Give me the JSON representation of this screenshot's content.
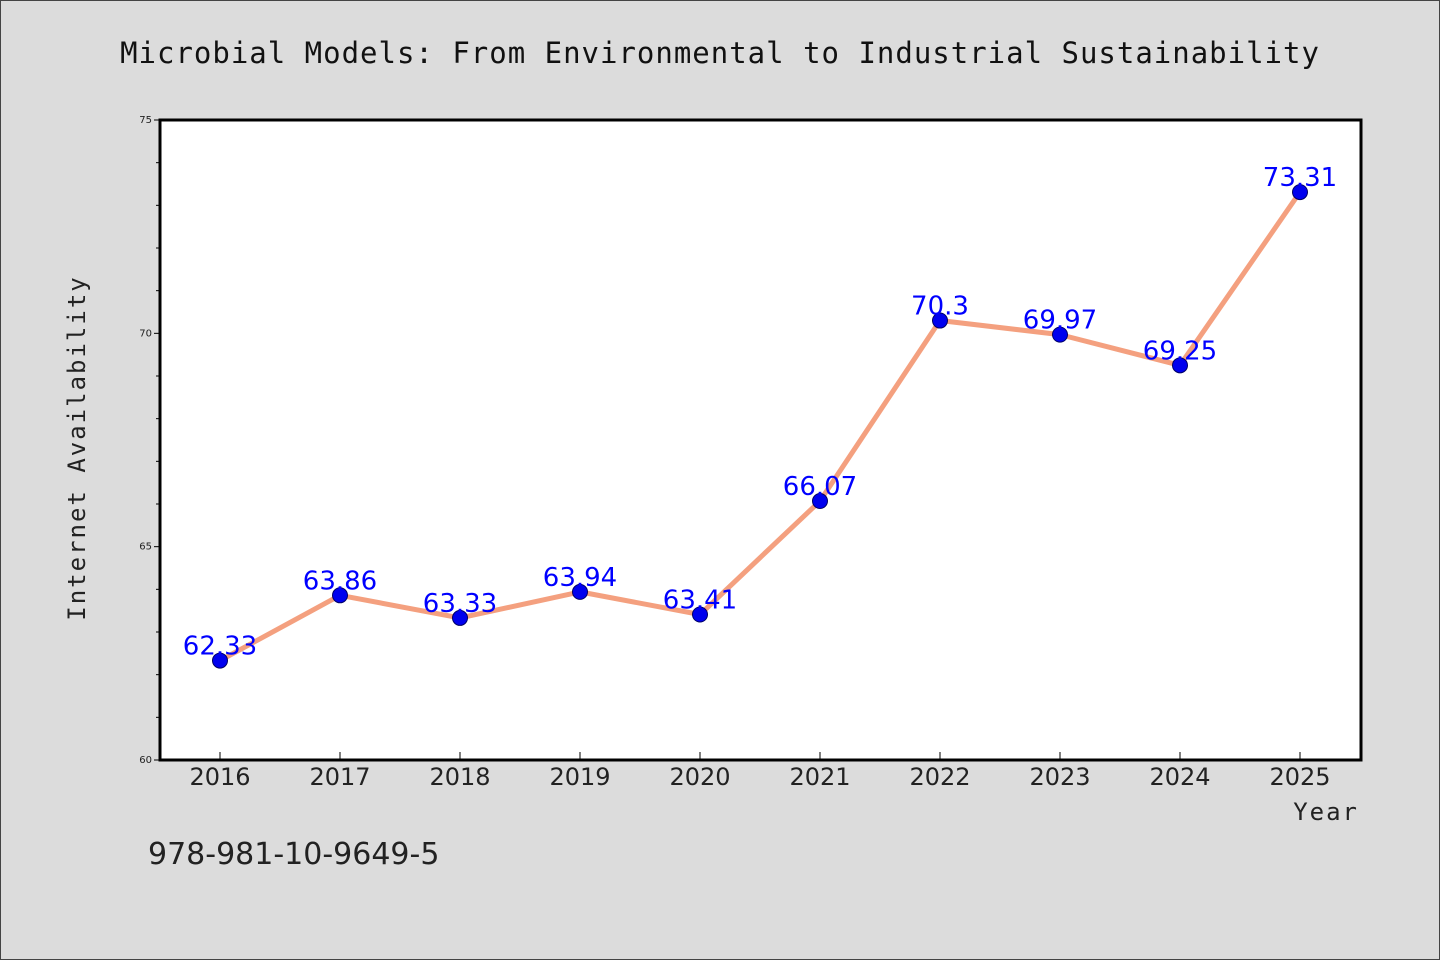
{
  "chart_data": {
    "type": "line",
    "title": "Microbial Models: From Environmental to Industrial Sustainability",
    "xlabel": "Year",
    "ylabel": "Internet Availability",
    "categories": [
      "2016",
      "2017",
      "2018",
      "2019",
      "2020",
      "2021",
      "2022",
      "2023",
      "2024",
      "2025"
    ],
    "series": [
      {
        "values": [
          62.33,
          63.86,
          63.33,
          63.94,
          63.41,
          66.07,
          70.3,
          69.97,
          69.25,
          73.31
        ],
        "labels": [
          "62.33",
          "63.86",
          "63.33",
          "63.94",
          "63.41",
          "66.07",
          "70.3",
          "69.97",
          "69.25",
          "73.31"
        ],
        "line_color": "#f4a07f",
        "marker_color": "#0000ee"
      }
    ],
    "ylim": [
      60,
      75
    ],
    "yticks": [
      "60",
      "65",
      "70",
      "75"
    ],
    "grid": false,
    "legend": "none"
  },
  "footer": {
    "isbn": "978-981-10-9649-5"
  },
  "colors": {
    "background": "#dcdcdc",
    "plot_area": "#ffffff",
    "label": "#0000ff"
  }
}
